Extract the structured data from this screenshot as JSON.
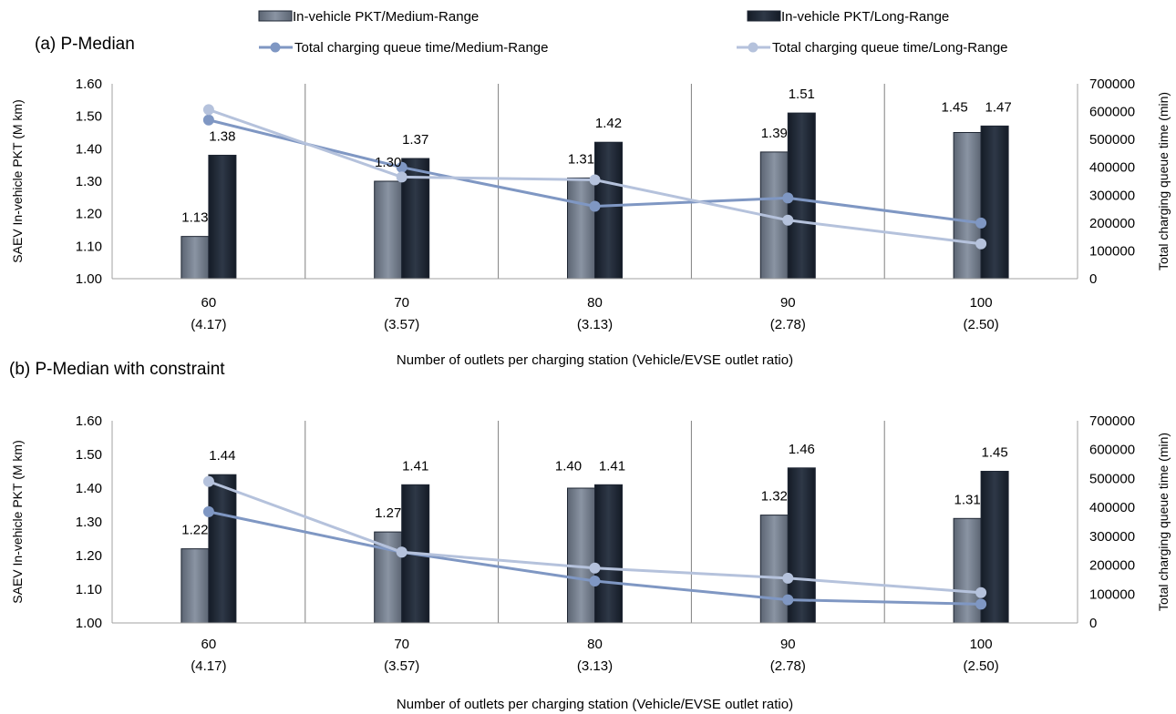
{
  "legend": {
    "pkt_medium": "In-vehicle PKT/Medium-Range",
    "pkt_long": "In-vehicle PKT/Long-Range",
    "queue_medium": "Total charging queue time/Medium-Range",
    "queue_long": "Total charging queue time/Long-Range"
  },
  "colors": {
    "bar_medium": "#707a88",
    "bar_long": "#1e2633",
    "line_medium": "#7f97c3",
    "line_long": "#b5c2dc",
    "grid": "#808080",
    "axis": "#a0a0a0"
  },
  "chart_data": [
    {
      "type": "bar",
      "title": "(a) P-Median",
      "categories": [
        "60",
        "70",
        "80",
        "90",
        "100"
      ],
      "category_sublabels": [
        "(4.17)",
        "(3.57)",
        "(3.13)",
        "(2.78)",
        "(2.50)"
      ],
      "xlabel": "Number of outlets per charging station (Vehicle/EVSE outlet ratio)",
      "ylabel": "SAEV In-vehicle PKT (M km)",
      "y2label": "Total charging queue time (min)",
      "ylim": [
        1.0,
        1.6
      ],
      "y2lim": [
        0,
        700000
      ],
      "yticks": [
        "1.00",
        "1.10",
        "1.20",
        "1.30",
        "1.40",
        "1.50",
        "1.60"
      ],
      "y2ticks": [
        "0",
        "100000",
        "200000",
        "300000",
        "400000",
        "500000",
        "600000",
        "700000"
      ],
      "grid": "vertical category separators",
      "series": [
        {
          "name": "In-vehicle PKT/Medium-Range",
          "kind": "bar",
          "axis": "left",
          "values": [
            1.13,
            1.3,
            1.31,
            1.39,
            1.45
          ],
          "labels": [
            "1.13",
            "1.30",
            "1.31",
            "1.39",
            "1.45"
          ]
        },
        {
          "name": "In-vehicle PKT/Long-Range",
          "kind": "bar",
          "axis": "left",
          "values": [
            1.38,
            1.37,
            1.42,
            1.51,
            1.47
          ],
          "labels": [
            "1.38",
            "1.37",
            "1.42",
            "1.51",
            "1.47"
          ]
        },
        {
          "name": "Total charging queue time/Medium-Range",
          "kind": "line",
          "axis": "right",
          "values": [
            570000,
            400000,
            260000,
            290000,
            200000
          ]
        },
        {
          "name": "Total charging queue time/Long-Range",
          "kind": "line",
          "axis": "right",
          "values": [
            607000,
            365000,
            355000,
            210000,
            125000
          ]
        }
      ]
    },
    {
      "type": "bar",
      "title": "(b) P-Median with constraint",
      "categories": [
        "60",
        "70",
        "80",
        "90",
        "100"
      ],
      "category_sublabels": [
        "(4.17)",
        "(3.57)",
        "(3.13)",
        "(2.78)",
        "(2.50)"
      ],
      "xlabel": "Number of outlets per charging station (Vehicle/EVSE outlet ratio)",
      "ylabel": "SAEV In-vehicle PKT (M km)",
      "y2label": "Total charging queue time (min)",
      "ylim": [
        1.0,
        1.6
      ],
      "y2lim": [
        0,
        700000
      ],
      "yticks": [
        "1.00",
        "1.10",
        "1.20",
        "1.30",
        "1.40",
        "1.50",
        "1.60"
      ],
      "y2ticks": [
        "0",
        "100000",
        "200000",
        "300000",
        "400000",
        "500000",
        "600000",
        "700000"
      ],
      "grid": "vertical category separators",
      "series": [
        {
          "name": "In-vehicle PKT/Medium-Range",
          "kind": "bar",
          "axis": "left",
          "values": [
            1.22,
            1.27,
            1.4,
            1.32,
            1.31
          ],
          "labels": [
            "1.22",
            "1.27",
            "1.40",
            "1.32",
            "1.31"
          ]
        },
        {
          "name": "In-vehicle PKT/Long-Range",
          "kind": "bar",
          "axis": "left",
          "values": [
            1.44,
            1.41,
            1.41,
            1.46,
            1.45
          ],
          "labels": [
            "1.44",
            "1.41",
            "1.41",
            "1.46",
            "1.45"
          ]
        },
        {
          "name": "Total charging queue time/Medium-Range",
          "kind": "line",
          "axis": "right",
          "values": [
            385000,
            245000,
            145000,
            80000,
            65000
          ]
        },
        {
          "name": "Total charging queue time/Long-Range",
          "kind": "line",
          "axis": "right",
          "values": [
            490000,
            245000,
            190000,
            155000,
            105000
          ]
        }
      ]
    }
  ]
}
